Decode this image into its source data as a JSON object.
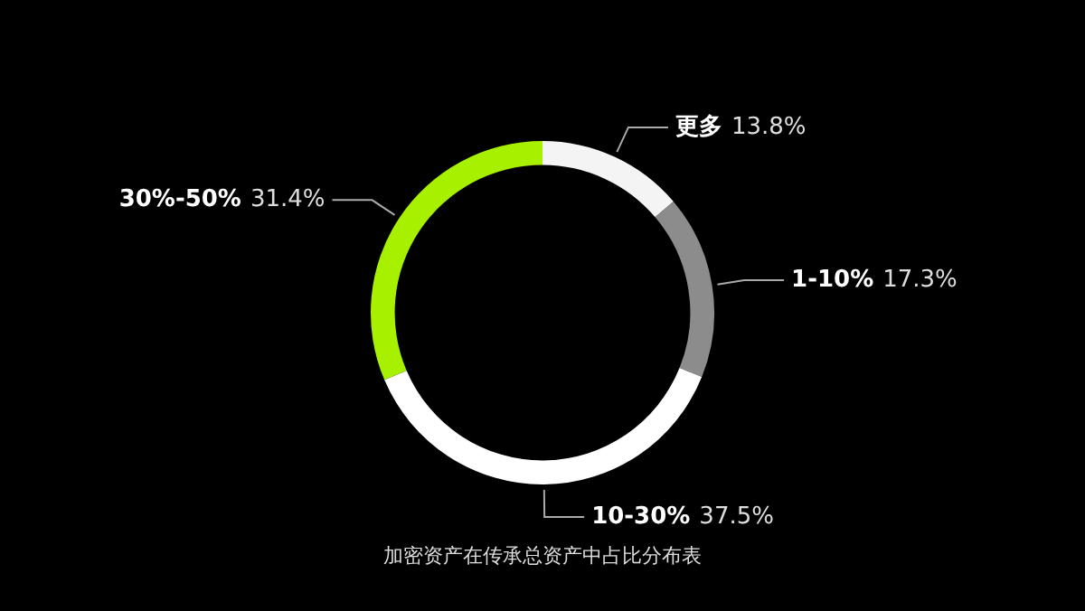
{
  "chart_data": {
    "type": "donut",
    "categories": [
      "更多",
      "1-10%",
      "10-30%",
      "30%-50%"
    ],
    "values": [
      13.8,
      17.3,
      37.5,
      31.4
    ],
    "value_labels": [
      "13.8%",
      "17.3%",
      "37.5%",
      "31.4%"
    ],
    "colors": [
      "#f4f4f4",
      "#8c8c8c",
      "#ffffff",
      "#a6f000"
    ],
    "annotations": [
      "加密资产在传承总资产中占比分布表"
    ],
    "legend": false
  }
}
